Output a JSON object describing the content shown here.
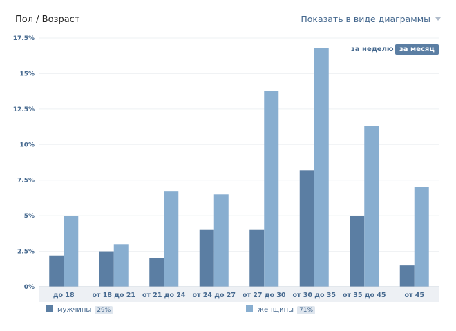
{
  "header": {
    "title": "Пол / Возраст",
    "view_toggle": "Показать в виде диаграммы"
  },
  "period_tabs": {
    "week": "за неделю",
    "month": "за месяц",
    "active": "month"
  },
  "legend": {
    "men": {
      "label": "мужчины",
      "percent": "29%"
    },
    "women": {
      "label": "женщины",
      "percent": "71%"
    }
  },
  "colors": {
    "men": "#5b7ea3",
    "women": "#88aed0",
    "axis_text": "#45688e",
    "grid": "#eef0f3"
  },
  "chart_data": {
    "type": "bar",
    "categories": [
      "до 18",
      "от 18 до 21",
      "от 21 до 24",
      "от 24 до 27",
      "от 27 до 30",
      "от 30 до 35",
      "от 35 до 45",
      "от 45"
    ],
    "series": [
      {
        "name": "мужчины",
        "values": [
          2.2,
          2.5,
          2.0,
          4.0,
          4.0,
          8.2,
          5.0,
          1.5
        ]
      },
      {
        "name": "женщины",
        "values": [
          5.0,
          3.0,
          6.7,
          6.5,
          13.8,
          16.8,
          11.3,
          7.0
        ]
      }
    ],
    "y_ticks": [
      0,
      2.5,
      5,
      7.5,
      10,
      12.5,
      15,
      17.5
    ],
    "y_tick_labels": [
      "0%",
      "2.5%",
      "5%",
      "7.5%",
      "10%",
      "12.5%",
      "15%",
      "17.5%"
    ],
    "ylim": [
      0,
      17.5
    ],
    "grid": true,
    "legend_position": "bottom"
  }
}
